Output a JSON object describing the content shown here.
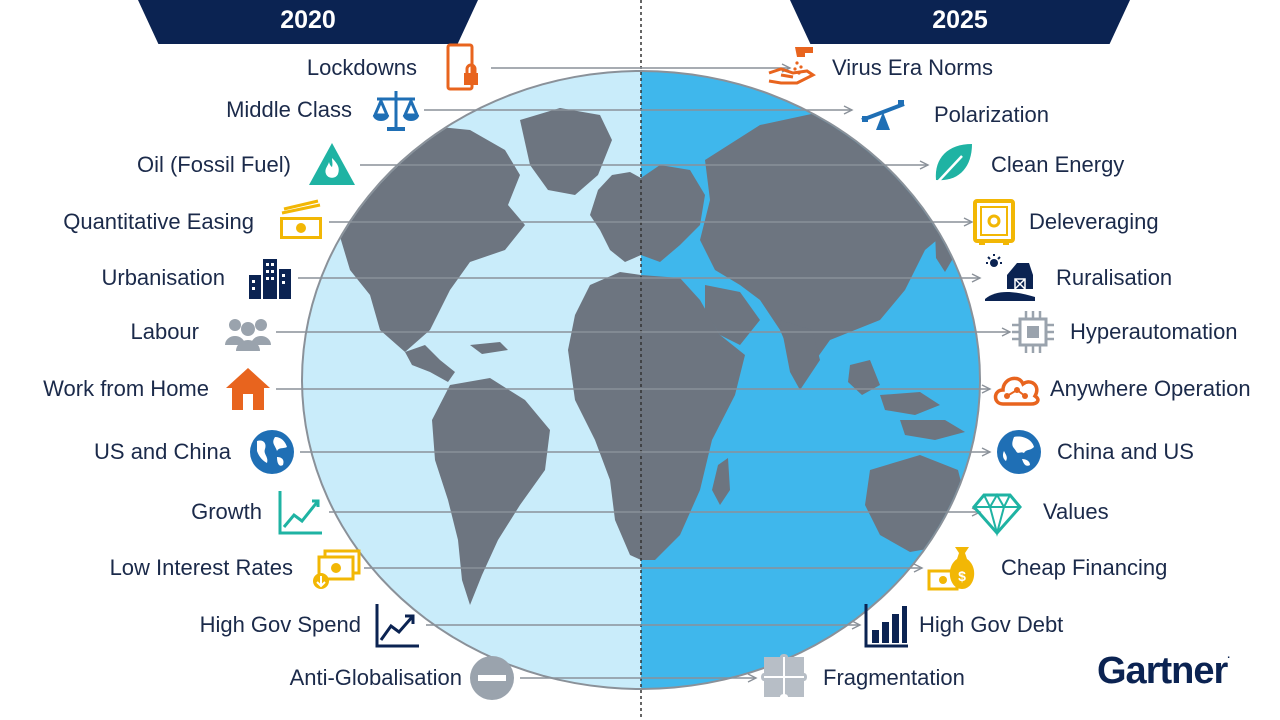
{
  "header": {
    "year_left": "2020",
    "year_right": "2025"
  },
  "colors": {
    "navy": "#0b2352",
    "orange": "#e8641e",
    "blue": "#1f6fb5",
    "teal": "#1fb3a3",
    "yellow": "#f2b705",
    "gray": "#9aa3ad",
    "ocean_left": "#c9ecfa",
    "ocean_right": "#3fb7ec",
    "land": "#6d7580"
  },
  "left_items": [
    {
      "label": "Lockdowns",
      "icon": "phone-lock-icon"
    },
    {
      "label": "Middle Class",
      "icon": "balance-scale-icon"
    },
    {
      "label": "Oil (Fossil Fuel)",
      "icon": "fire-warning-icon"
    },
    {
      "label": "Quantitative Easing",
      "icon": "money-stack-icon"
    },
    {
      "label": "Urbanisation",
      "icon": "city-buildings-icon"
    },
    {
      "label": "Labour",
      "icon": "people-group-icon"
    },
    {
      "label": "Work from Home",
      "icon": "house-icon"
    },
    {
      "label": "US and China",
      "icon": "globe-icon"
    },
    {
      "label": "Growth",
      "icon": "line-chart-icon"
    },
    {
      "label": "Low Interest Rates",
      "icon": "cash-down-icon"
    },
    {
      "label": "High Gov Spend",
      "icon": "trend-up-chart-icon"
    },
    {
      "label": "Anti-Globalisation",
      "icon": "minus-circle-icon"
    }
  ],
  "right_items": [
    {
      "label": "Virus Era Norms",
      "icon": "hand-sanitizer-icon"
    },
    {
      "label": "Polarization",
      "icon": "seesaw-icon"
    },
    {
      "label": "Clean Energy",
      "icon": "leaf-icon"
    },
    {
      "label": "Deleveraging",
      "icon": "safe-icon"
    },
    {
      "label": "Ruralisation",
      "icon": "farm-barn-icon"
    },
    {
      "label": "Hyperautomation",
      "icon": "microchip-icon"
    },
    {
      "label": "Anywhere Operation",
      "icon": "cloud-network-icon"
    },
    {
      "label": "China and US",
      "icon": "globe-asia-icon"
    },
    {
      "label": "Values",
      "icon": "diamond-icon"
    },
    {
      "label": "Cheap Financing",
      "icon": "money-bag-icon"
    },
    {
      "label": "High Gov Debt",
      "icon": "bar-chart-icon"
    },
    {
      "label": "Fragmentation",
      "icon": "puzzle-icon"
    }
  ],
  "brand": {
    "logo": "Gartner",
    "reg": "."
  }
}
